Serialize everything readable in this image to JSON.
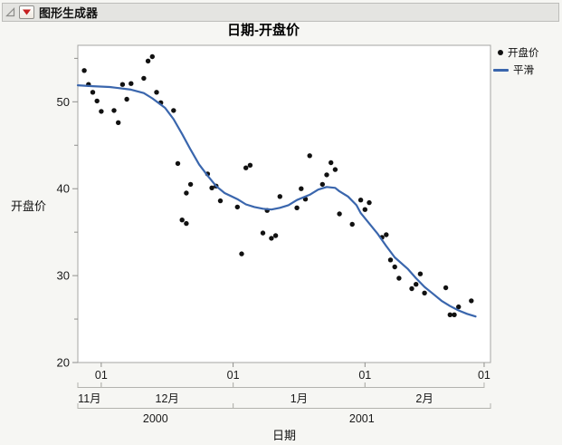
{
  "header": {
    "title": "图形生成器"
  },
  "chart": {
    "title": "日期-开盘价",
    "x_axis_title": "日期",
    "y_axis_title": "开盘价",
    "legend_items": [
      {
        "label": "开盘价",
        "marker": "dot",
        "color": "#111111"
      },
      {
        "label": "平滑",
        "marker": "line",
        "color": "#3a66ad"
      }
    ]
  },
  "chart_data": {
    "type": "scatter",
    "title": "日期-开盘价",
    "xlabel": "日期",
    "ylabel": "开盘价",
    "x_range": [
      "2000-11-25T12:00:00",
      "2001-03-02T12:00:00"
    ],
    "ylim": [
      20,
      56.5
    ],
    "y_major_ticks": [
      20,
      30,
      40,
      50
    ],
    "y_minor_ticks": [
      25,
      35,
      45,
      55
    ],
    "x_day_ticks": [
      {
        "date": "2000-12-01",
        "label": "01"
      },
      {
        "date": "2001-01-01",
        "label": "01"
      },
      {
        "date": "2001-02-01",
        "label": "01"
      },
      {
        "date": "2001-03-01",
        "label": "01"
      }
    ],
    "x_month_groups": [
      {
        "label": "11月",
        "start": "2000-11-25T12:00:00",
        "end": "2000-12-01"
      },
      {
        "label": "12月",
        "start": "2000-12-01",
        "end": "2001-01-01"
      },
      {
        "label": "1月",
        "start": "2001-01-01",
        "end": "2001-02-01"
      },
      {
        "label": "2月",
        "start": "2001-02-01",
        "end": "2001-03-01"
      }
    ],
    "x_year_groups": [
      {
        "label": "2000",
        "start": "2000-11-25T12:00:00",
        "end": "2001-01-01"
      },
      {
        "label": "2001",
        "start": "2001-01-01",
        "end": "2001-03-02T12:00:00"
      }
    ],
    "legend_position": "top-right-outside",
    "grid": false,
    "colors": {
      "frame": "#a6a6a3",
      "tick": "#8f8f8c",
      "bracket": "#b3b3ae",
      "text": "#1a1a1a",
      "plot_bg": "#ffffff"
    },
    "series": [
      {
        "name": "开盘价",
        "type": "scatter",
        "color": "#111111",
        "points": [
          [
            "2000-11-27",
            53.6
          ],
          [
            "2000-11-28",
            52.0
          ],
          [
            "2000-11-29",
            51.1
          ],
          [
            "2000-11-30",
            50.1
          ],
          [
            "2000-12-01",
            48.9
          ],
          [
            "2000-12-04",
            49.0
          ],
          [
            "2000-12-05",
            47.6
          ],
          [
            "2000-12-06",
            52.0
          ],
          [
            "2000-12-07",
            50.3
          ],
          [
            "2000-12-08",
            52.1
          ],
          [
            "2000-12-11",
            52.7
          ],
          [
            "2000-12-12",
            54.7
          ],
          [
            "2000-12-13",
            55.2
          ],
          [
            "2000-12-14",
            51.1
          ],
          [
            "2000-12-15",
            49.9
          ],
          [
            "2000-12-18",
            49.0
          ],
          [
            "2000-12-19",
            42.9
          ],
          [
            "2000-12-20",
            36.4
          ],
          [
            "2000-12-21",
            36.0
          ],
          [
            "2000-12-21",
            39.5
          ],
          [
            "2000-12-22",
            40.5
          ],
          [
            "2000-12-26",
            41.7
          ],
          [
            "2000-12-27",
            40.1
          ],
          [
            "2000-12-28",
            40.3
          ],
          [
            "2000-12-29",
            38.6
          ],
          [
            "2001-01-02",
            37.9
          ],
          [
            "2001-01-03",
            32.5
          ],
          [
            "2001-01-04",
            42.4
          ],
          [
            "2001-01-05",
            42.7
          ],
          [
            "2001-01-08",
            34.9
          ],
          [
            "2001-01-09",
            37.5
          ],
          [
            "2001-01-10",
            34.3
          ],
          [
            "2001-01-11",
            34.6
          ],
          [
            "2001-01-12",
            39.1
          ],
          [
            "2001-01-16",
            37.8
          ],
          [
            "2001-01-17",
            40.0
          ],
          [
            "2001-01-18",
            38.8
          ],
          [
            "2001-01-19",
            43.8
          ],
          [
            "2001-01-22",
            40.5
          ],
          [
            "2001-01-23",
            41.6
          ],
          [
            "2001-01-24",
            43.0
          ],
          [
            "2001-01-25",
            42.2
          ],
          [
            "2001-01-26",
            37.1
          ],
          [
            "2001-01-29",
            35.9
          ],
          [
            "2001-01-31",
            38.7
          ],
          [
            "2001-02-01",
            37.6
          ],
          [
            "2001-02-02",
            38.4
          ],
          [
            "2001-02-05",
            34.4
          ],
          [
            "2001-02-06",
            34.7
          ],
          [
            "2001-02-07",
            31.8
          ],
          [
            "2001-02-08",
            31.0
          ],
          [
            "2001-02-09",
            29.7
          ],
          [
            "2001-02-12",
            28.5
          ],
          [
            "2001-02-13",
            29.0
          ],
          [
            "2001-02-14",
            30.2
          ],
          [
            "2001-02-15",
            28.0
          ],
          [
            "2001-02-20",
            28.6
          ],
          [
            "2001-02-21",
            25.5
          ],
          [
            "2001-02-22",
            25.5
          ],
          [
            "2001-02-23",
            26.4
          ],
          [
            "2001-02-26",
            27.1
          ]
        ]
      },
      {
        "name": "平滑",
        "type": "line",
        "color": "#3a66ad",
        "points": [
          [
            "2000-11-25T12:00:00",
            51.9
          ],
          [
            "2000-11-29",
            51.8
          ],
          [
            "2000-12-03",
            51.7
          ],
          [
            "2000-12-08",
            51.4
          ],
          [
            "2000-12-11",
            51.0
          ],
          [
            "2000-12-13",
            50.4
          ],
          [
            "2000-12-16",
            49.3
          ],
          [
            "2000-12-18",
            48.0
          ],
          [
            "2000-12-20",
            46.3
          ],
          [
            "2000-12-22",
            44.5
          ],
          [
            "2000-12-24",
            42.8
          ],
          [
            "2000-12-26",
            41.5
          ],
          [
            "2000-12-28",
            40.3
          ],
          [
            "2000-12-30",
            39.5
          ],
          [
            "2001-01-02",
            38.8
          ],
          [
            "2001-01-04",
            38.2
          ],
          [
            "2001-01-06",
            37.9
          ],
          [
            "2001-01-08",
            37.7
          ],
          [
            "2001-01-10",
            37.6
          ],
          [
            "2001-01-12",
            37.8
          ],
          [
            "2001-01-14",
            38.1
          ],
          [
            "2001-01-16",
            38.7
          ],
          [
            "2001-01-19",
            39.3
          ],
          [
            "2001-01-21",
            39.9
          ],
          [
            "2001-01-23",
            40.2
          ],
          [
            "2001-01-25",
            40.1
          ],
          [
            "2001-01-26",
            39.7
          ],
          [
            "2001-01-28",
            39.1
          ],
          [
            "2001-01-30",
            38.1
          ],
          [
            "2001-01-31",
            37.2
          ],
          [
            "2001-02-02",
            36.0
          ],
          [
            "2001-02-04",
            34.8
          ],
          [
            "2001-02-06",
            33.4
          ],
          [
            "2001-02-08",
            32.1
          ],
          [
            "2001-02-11",
            30.8
          ],
          [
            "2001-02-13",
            29.7
          ],
          [
            "2001-02-15",
            28.7
          ],
          [
            "2001-02-17",
            27.9
          ],
          [
            "2001-02-19",
            27.1
          ],
          [
            "2001-02-21",
            26.5
          ],
          [
            "2001-02-23",
            26.0
          ],
          [
            "2001-02-25",
            25.6
          ],
          [
            "2001-02-27",
            25.3
          ]
        ]
      }
    ]
  }
}
